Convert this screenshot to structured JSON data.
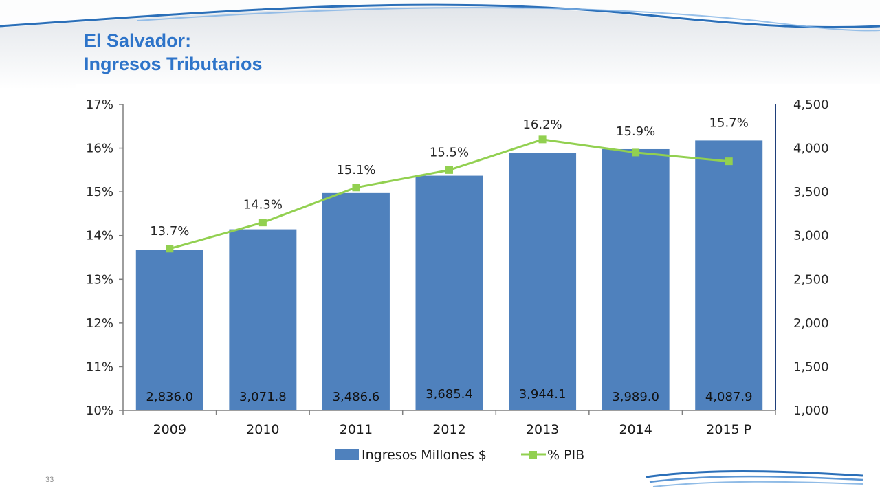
{
  "slide": {
    "title_line1": "El Salvador:",
    "title_line2": "Ingresos Tributarios",
    "page_number": "33"
  },
  "colors": {
    "title": "#2e74c9",
    "bar": "#4f81bd",
    "line": "#92d050",
    "right_axis": "#1f3f7a"
  },
  "chart_data": {
    "type": "bar",
    "categories": [
      "2009",
      "2010",
      "2011",
      "2012",
      "2013",
      "2014",
      "2015 P"
    ],
    "series": [
      {
        "name": "Ingresos Millones $",
        "type": "bar",
        "axis": "right",
        "values": [
          2836.0,
          3071.8,
          3486.6,
          3685.4,
          3944.1,
          3989.0,
          4087.9
        ],
        "labels": [
          "2,836.0",
          "3,071.8",
          "3,486.6",
          "3,685.4",
          "3,944.1",
          "3,989.0",
          "4,087.9"
        ]
      },
      {
        "name": "% PIB",
        "type": "line",
        "axis": "left",
        "values": [
          13.7,
          14.3,
          15.1,
          15.5,
          16.2,
          15.9,
          15.7
        ],
        "labels": [
          "13.7%",
          "14.3%",
          "15.1%",
          "15.5%",
          "16.2%",
          "15.9%",
          "15.7%"
        ]
      }
    ],
    "y_left": {
      "min": 10,
      "max": 17,
      "ticks": [
        "17%",
        "16%",
        "15%",
        "14%",
        "13%",
        "12%",
        "11%",
        "10%"
      ]
    },
    "y_right": {
      "min": 1000,
      "max": 4500,
      "ticks": [
        "4,500",
        "4,000",
        "3,500",
        "3,000",
        "2,500",
        "2,000",
        "1,500",
        "1,000"
      ]
    },
    "grid": false,
    "legend_position": "bottom"
  }
}
